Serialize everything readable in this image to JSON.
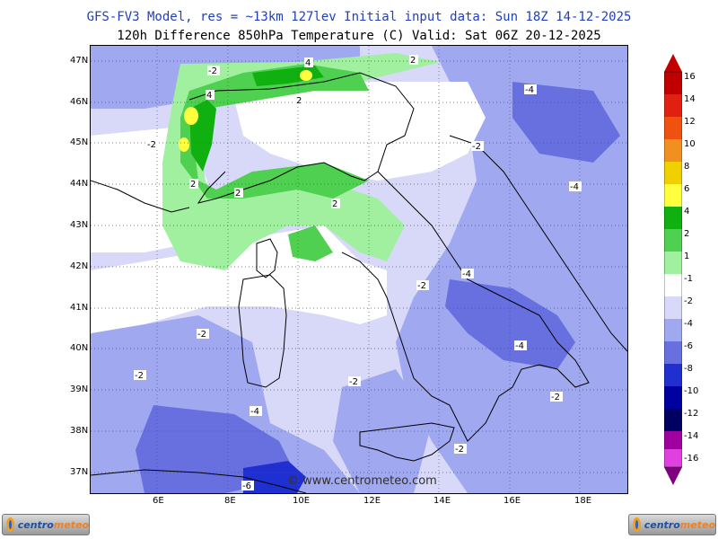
{
  "header": {
    "line1": "GFS-FV3 Model, res = ~13km 127lev   Initial input data: Sun 18Z 14-12-2025",
    "line2": "120h Difference 850hPa Temperature (C)  Valid: Sat 06Z 20-12-2025"
  },
  "map": {
    "lat_labels": [
      "47N",
      "46N",
      "45N",
      "44N",
      "43N",
      "42N",
      "41N",
      "40N",
      "39N",
      "38N",
      "37N"
    ],
    "lon_labels": [
      "6E",
      "8E",
      "10E",
      "12E",
      "14E",
      "16E",
      "18E"
    ],
    "contour_labels": [
      "-2",
      "2",
      "4",
      "-4",
      "-6"
    ],
    "watermark": "© www.centrometeo.com"
  },
  "colorbar": {
    "labels": [
      "16",
      "14",
      "12",
      "10",
      "8",
      "6",
      "4",
      "2",
      "1",
      "-1",
      "-2",
      "-4",
      "-6",
      "-8",
      "-10",
      "-12",
      "-14",
      "-16"
    ],
    "colors": [
      "#c00000",
      "#e02010",
      "#f05010",
      "#f09020",
      "#f0d000",
      "#ffff40",
      "#10b010",
      "#50d050",
      "#a0f0a0",
      "#ffffff",
      "#d8d8f8",
      "#a0a8f0",
      "#6870e0",
      "#2030d0",
      "#0000a0",
      "#000060",
      "#a000a0",
      "#e040e0",
      "#800080"
    ]
  },
  "logos": {
    "left_text_1": "centro",
    "left_text_2": "meteo",
    "right_text_1": "centro",
    "right_text_2": "meteo"
  }
}
